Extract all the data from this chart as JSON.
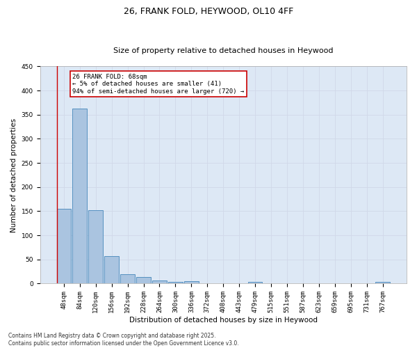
{
  "title": "26, FRANK FOLD, HEYWOOD, OL10 4FF",
  "subtitle": "Size of property relative to detached houses in Heywood",
  "xlabel": "Distribution of detached houses by size in Heywood",
  "ylabel": "Number of detached properties",
  "categories": [
    "48sqm",
    "84sqm",
    "120sqm",
    "156sqm",
    "192sqm",
    "228sqm",
    "264sqm",
    "300sqm",
    "336sqm",
    "372sqm",
    "408sqm",
    "443sqm",
    "479sqm",
    "515sqm",
    "551sqm",
    "587sqm",
    "623sqm",
    "659sqm",
    "695sqm",
    "731sqm",
    "767sqm"
  ],
  "values": [
    155,
    362,
    152,
    57,
    19,
    13,
    7,
    4,
    5,
    0,
    0,
    0,
    4,
    0,
    0,
    0,
    0,
    0,
    0,
    0,
    4
  ],
  "bar_color": "#aac4e0",
  "bar_edge_color": "#5590c0",
  "grid_color": "#d0d8e8",
  "background_color": "#dde8f5",
  "annotation_text": "26 FRANK FOLD: 68sqm\n← 5% of detached houses are smaller (41)\n94% of semi-detached houses are larger (720) →",
  "annotation_box_color": "#ffffff",
  "annotation_border_color": "#cc0000",
  "red_line_x": -0.45,
  "ylim": [
    0,
    450
  ],
  "yticks": [
    0,
    50,
    100,
    150,
    200,
    250,
    300,
    350,
    400,
    450
  ],
  "footer": "Contains HM Land Registry data © Crown copyright and database right 2025.\nContains public sector information licensed under the Open Government Licence v3.0.",
  "title_fontsize": 9,
  "subtitle_fontsize": 8,
  "axis_label_fontsize": 7.5,
  "tick_fontsize": 6.5,
  "annotation_fontsize": 6.5,
  "footer_fontsize": 5.5
}
